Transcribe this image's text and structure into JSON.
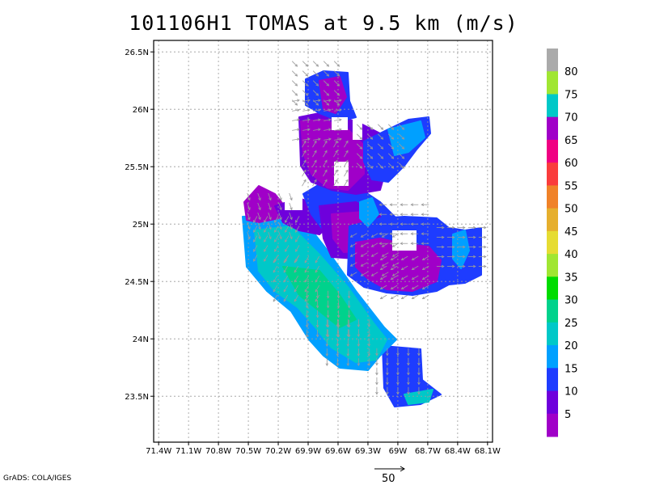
{
  "title": "101106H1 TOMAS at 9.5 km (m/s)",
  "credit": "GrADS: COLA/IGES",
  "reference_vector": "50",
  "colors": {
    "grid": "#9a9a9a",
    "arrow": "#9a9a9a"
  },
  "chart_data": {
    "type": "heatmap",
    "title": "101106H1 TOMAS at 9.5 km (m/s)",
    "units": "m/s",
    "x_ticks": [
      "71.4W",
      "71.1W",
      "70.8W",
      "70.5W",
      "70.2W",
      "69.9W",
      "69.6W",
      "69.3W",
      "69W",
      "68.7W",
      "68.4W",
      "68.1W"
    ],
    "y_ticks": [
      "23.5N",
      "24N",
      "24.5N",
      "25N",
      "25.5N",
      "26N",
      "26.5N"
    ],
    "xlim": [
      -71.45,
      -68.05
    ],
    "ylim": [
      23.1,
      26.6
    ],
    "grid": true,
    "colorbar": {
      "labels": [
        "5",
        "10",
        "15",
        "20",
        "25",
        "30",
        "35",
        "40",
        "45",
        "50",
        "55",
        "60",
        "65",
        "70",
        "75",
        "80"
      ],
      "colors": [
        "#a000c8",
        "#6e00dc",
        "#1e3cff",
        "#00a0ff",
        "#00c8c8",
        "#00d28c",
        "#00dc00",
        "#a0e632",
        "#e6dc32",
        "#e6af2d",
        "#f08228",
        "#fa3c3c",
        "#f00082",
        "#a000c8",
        "#00c8c8",
        "#a0e632",
        "#aaaaaa"
      ]
    },
    "wind_field": [
      {
        "lon": -69.85,
        "lat": 26.25,
        "speed": 10,
        "dir": 45
      },
      {
        "lon": -69.85,
        "lat": 25.9,
        "speed": 5,
        "dir": 100
      },
      {
        "lon": -69.75,
        "lat": 25.5,
        "speed": 5,
        "dir": 150
      },
      {
        "lon": -69.2,
        "lat": 25.7,
        "speed": 20,
        "dir": 45
      },
      {
        "lon": -70.3,
        "lat": 25.1,
        "speed": 5,
        "dir": 20
      },
      {
        "lon": -70.2,
        "lat": 24.9,
        "speed": 20,
        "dir": 330
      },
      {
        "lon": -70.0,
        "lat": 24.55,
        "speed": 25,
        "dir": 330
      },
      {
        "lon": -69.7,
        "lat": 24.25,
        "speed": 25,
        "dir": 0
      },
      {
        "lon": -69.5,
        "lat": 24.0,
        "speed": 25,
        "dir": 0
      },
      {
        "lon": -69.0,
        "lat": 23.75,
        "speed": 15,
        "dir": 0
      },
      {
        "lon": -69.2,
        "lat": 24.75,
        "speed": 5,
        "dir": 300
      },
      {
        "lon": -68.9,
        "lat": 24.55,
        "speed": 5,
        "dir": 300
      },
      {
        "lon": -68.9,
        "lat": 25.0,
        "speed": 15,
        "dir": 270
      },
      {
        "lon": -68.4,
        "lat": 24.8,
        "speed": 15,
        "dir": 90
      }
    ]
  }
}
